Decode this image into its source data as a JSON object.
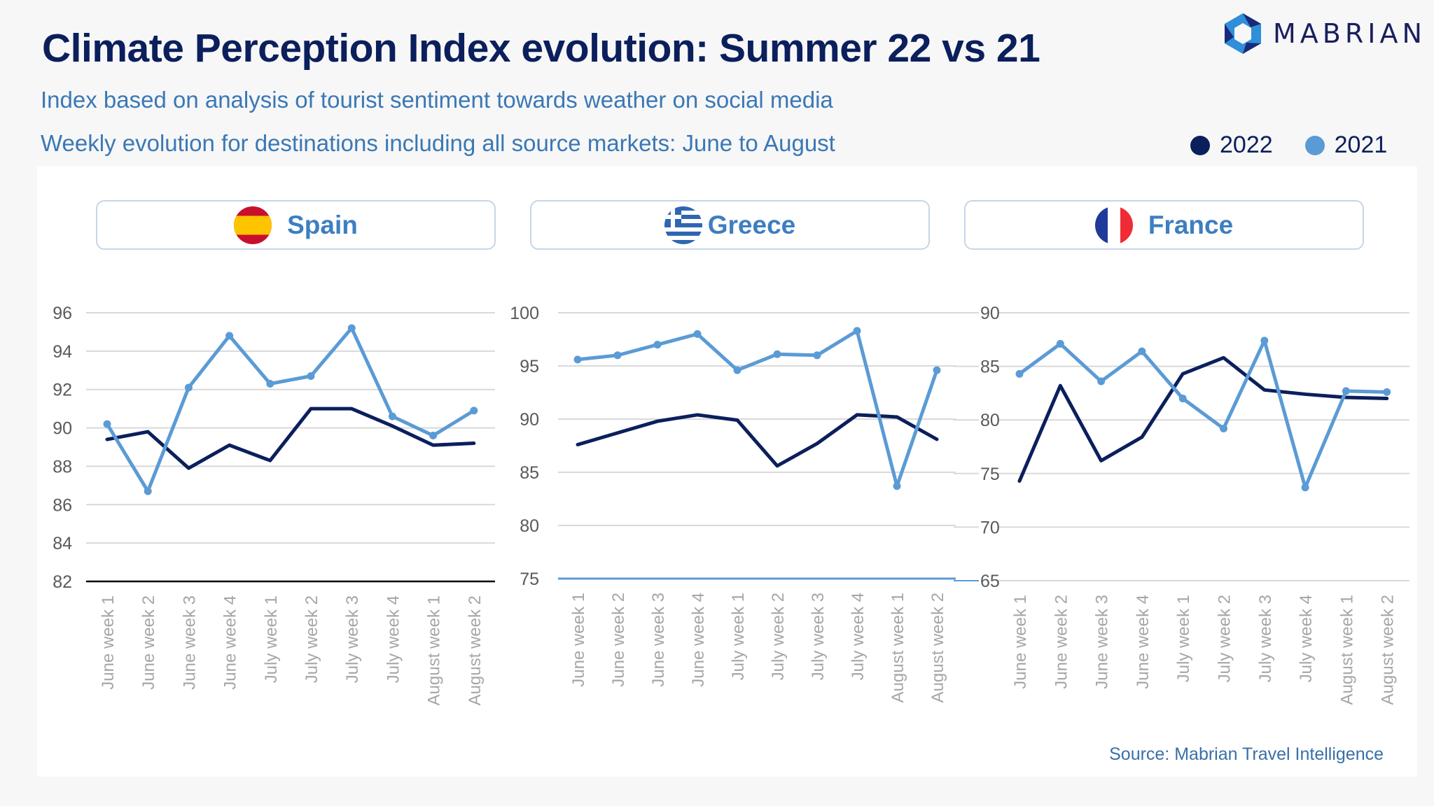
{
  "header": {
    "title": "Climate Perception Index evolution: Summer 22 vs 21",
    "subtitle_1": "Index based on analysis of tourist sentiment towards weather on social media",
    "subtitle_2": "Weekly evolution for destinations including all source markets: June to August",
    "logo_text": "MABRIAN"
  },
  "legend": [
    {
      "label": "2022",
      "color": "#0b1f5c"
    },
    {
      "label": "2021",
      "color": "#5b9bd5"
    }
  ],
  "footer": {
    "source": "Source: Mabrian Travel Intelligence"
  },
  "colors": {
    "series_2022": "#0b1f5c",
    "series_2021": "#5b9bd5",
    "grid": "#d9d9d9",
    "tick_label": "#595959",
    "category_label": "#a6a6a6"
  },
  "chart_data": [
    {
      "type": "line",
      "title": "Spain",
      "flag": "spain-flag",
      "categories": [
        "June week 1",
        "June week 2",
        "June week 3",
        "June week 4",
        "July week 1",
        "July week 2",
        "July week 3",
        "July week 4",
        "August week 1",
        "August week 2"
      ],
      "yticks": [
        82,
        84,
        86,
        88,
        90,
        92,
        94,
        96
      ],
      "ylim": [
        82,
        96
      ],
      "grid": true,
      "legend": "top-right",
      "series": [
        {
          "name": "2022",
          "values": [
            89.4,
            89.8,
            87.9,
            89.1,
            88.3,
            91.0,
            91.0,
            90.1,
            89.1,
            89.2
          ],
          "markers": false
        },
        {
          "name": "2021",
          "values": [
            90.2,
            86.7,
            92.1,
            94.8,
            92.3,
            92.7,
            95.2,
            90.6,
            89.6,
            90.9
          ],
          "markers": true
        }
      ]
    },
    {
      "type": "line",
      "title": "Greece",
      "flag": "greece-flag",
      "categories": [
        "June week 1",
        "June week 2",
        "June week 3",
        "June week 4",
        "July week 1",
        "July week 2",
        "July week 3",
        "July week 4",
        "August week 1",
        "August week 2"
      ],
      "yticks": [
        75,
        80,
        85,
        90,
        95,
        100
      ],
      "ylim": [
        75,
        100
      ],
      "grid": true,
      "series": [
        {
          "name": "2022",
          "values": [
            87.6,
            88.7,
            89.8,
            90.4,
            89.9,
            85.6,
            87.7,
            90.4,
            90.2,
            88.1
          ],
          "markers": false
        },
        {
          "name": "2021",
          "values": [
            95.6,
            96.0,
            97.0,
            98.0,
            94.6,
            96.1,
            96.0,
            98.3,
            83.7,
            94.6
          ],
          "markers": true
        }
      ]
    },
    {
      "type": "line",
      "title": "France",
      "flag": "france-flag",
      "categories": [
        "June week 1",
        "June week 2",
        "June week 3",
        "June week 4",
        "July week 1",
        "July week 2",
        "July week 3",
        "July week 4",
        "August week 1",
        "August week 2"
      ],
      "yticks": [
        65,
        70,
        75,
        80,
        85,
        90
      ],
      "ylim": [
        65,
        90
      ],
      "grid": true,
      "series": [
        {
          "name": "2022",
          "values": [
            74.3,
            83.2,
            76.2,
            78.4,
            84.3,
            85.8,
            82.8,
            82.4,
            82.1,
            82.0
          ],
          "markers": false
        },
        {
          "name": "2021",
          "values": [
            84.3,
            87.1,
            83.6,
            86.4,
            82.0,
            79.2,
            87.4,
            73.7,
            82.7,
            82.6
          ],
          "markers": true
        }
      ]
    }
  ]
}
